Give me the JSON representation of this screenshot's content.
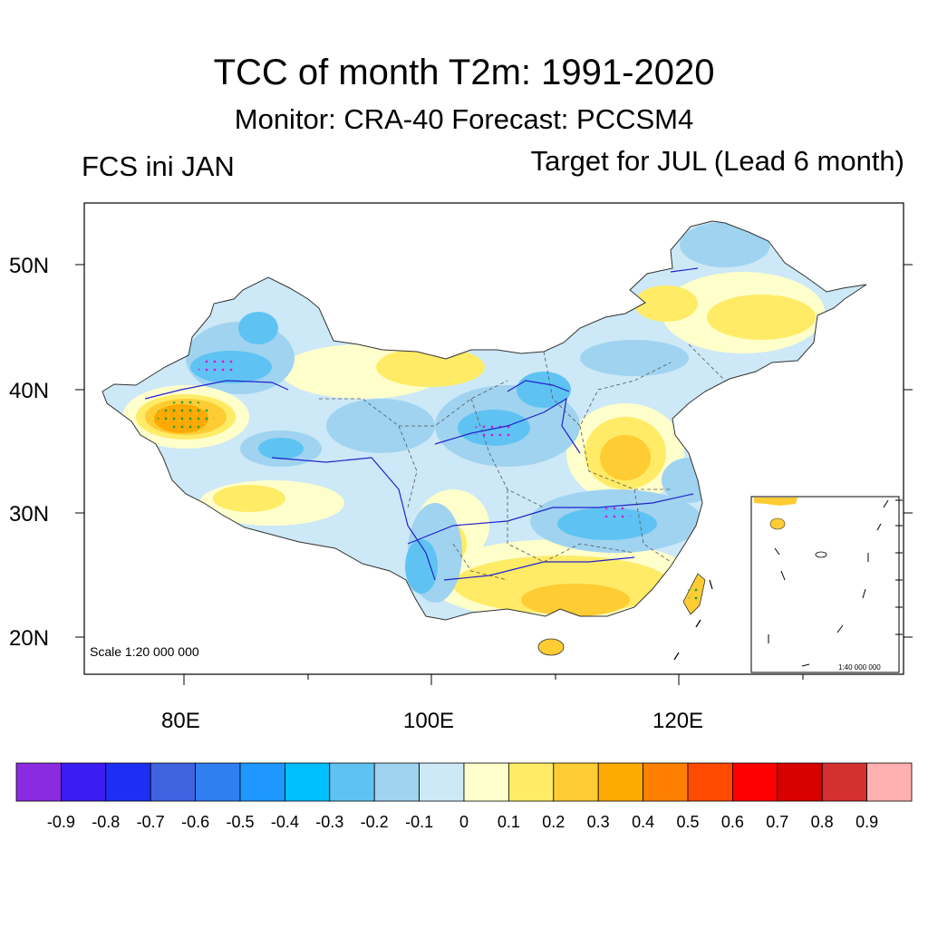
{
  "header": {
    "title": "TCC of month T2m: 1991-2020",
    "subtitle": "Monitor: CRA-40   Forecast: PCCSM4",
    "left_label": "FCS ini JAN",
    "right_label": "Target for JUL (Lead 6 month)"
  },
  "map": {
    "lat_labels": [
      "50N",
      "40N",
      "30N",
      "20N"
    ],
    "lon_labels": [
      "80E",
      "100E",
      "120E"
    ],
    "scale_text": "Scale 1:20 000 000",
    "inset_scale_text": "1:40 000 000"
  },
  "colorbar": {
    "colors": [
      "#8a2be2",
      "#3b1cf2",
      "#1e2ff5",
      "#3f63e0",
      "#2f7ff0",
      "#1e98ff",
      "#00bfff",
      "#5ec3f2",
      "#9fd3f0",
      "#cde8f6",
      "#ffffcc",
      "#ffeb66",
      "#ffcc33",
      "#ffaa00",
      "#ff8000",
      "#ff4a00",
      "#ff0000",
      "#d90000",
      "#d43030",
      "#ffb0b0"
    ],
    "labels": [
      "-0.9",
      "-0.8",
      "-0.7",
      "-0.6",
      "-0.5",
      "-0.4",
      "-0.3",
      "-0.2",
      "-0.1",
      "0",
      "0.1",
      "0.2",
      "0.3",
      "0.4",
      "0.5",
      "0.6",
      "0.7",
      "0.8",
      "0.9"
    ]
  }
}
